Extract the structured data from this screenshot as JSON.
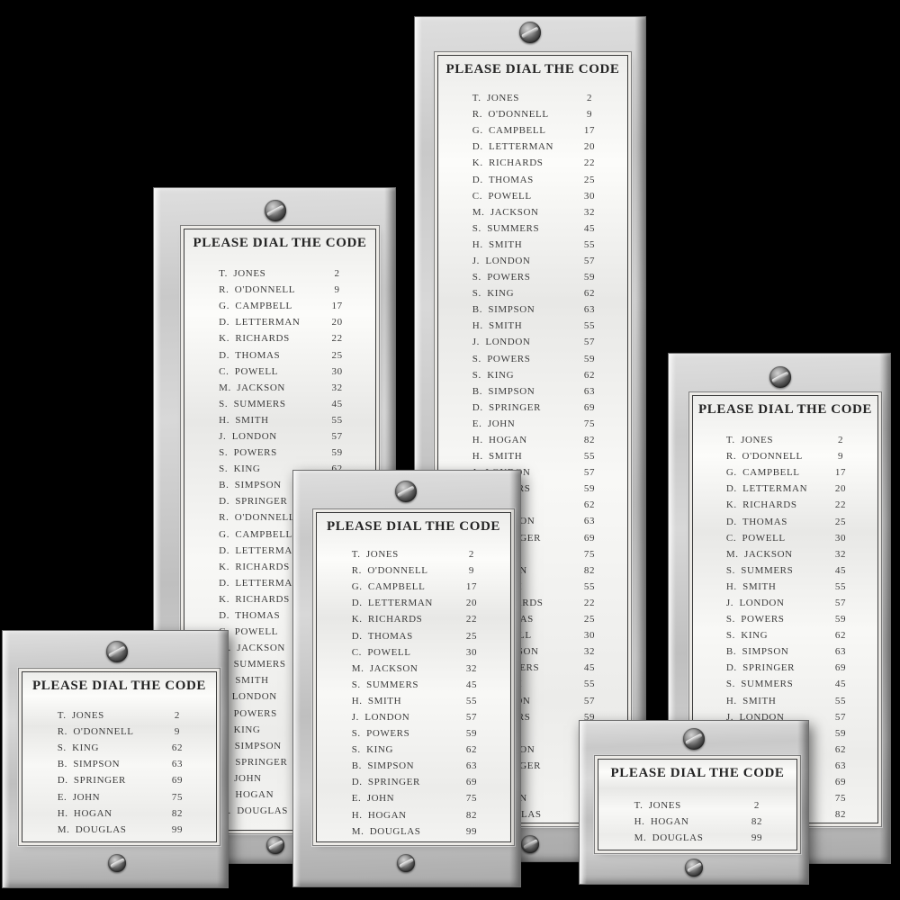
{
  "colors": {
    "background": "#000000",
    "frame_metal": "#c6c6c6",
    "paper": "#f4f4f2",
    "text": "#3c3c3c",
    "printed_border": "#3a3a3a"
  },
  "icons": {
    "screw": "slotted-screw-icon"
  },
  "panels": [
    {
      "id": "tall",
      "header": "PLEASE DIAL THE CODE",
      "entries": [
        {
          "name": "T. JONES",
          "code": "2"
        },
        {
          "name": "R. O'DONNELL",
          "code": "9"
        },
        {
          "name": "G. CAMPBELL",
          "code": "17"
        },
        {
          "name": "D. LETTERMAN",
          "code": "20"
        },
        {
          "name": "K. RICHARDS",
          "code": "22"
        },
        {
          "name": "D. THOMAS",
          "code": "25"
        },
        {
          "name": "C. POWELL",
          "code": "30"
        },
        {
          "name": "M. JACKSON",
          "code": "32"
        },
        {
          "name": "S. SUMMERS",
          "code": "45"
        },
        {
          "name": "H. SMITH",
          "code": "55"
        },
        {
          "name": "J. LONDON",
          "code": "57"
        },
        {
          "name": "S. POWERS",
          "code": "59"
        },
        {
          "name": "S. KING",
          "code": "62"
        },
        {
          "name": "B. SIMPSON",
          "code": "63"
        },
        {
          "name": "H. SMITH",
          "code": "55"
        },
        {
          "name": "J. LONDON",
          "code": "57"
        },
        {
          "name": "S. POWERS",
          "code": "59"
        },
        {
          "name": "S. KING",
          "code": "62"
        },
        {
          "name": "B. SIMPSON",
          "code": "63"
        },
        {
          "name": "D. SPRINGER",
          "code": "69"
        },
        {
          "name": "E. JOHN",
          "code": "75"
        },
        {
          "name": "H. HOGAN",
          "code": "82"
        },
        {
          "name": "H. SMITH",
          "code": "55"
        },
        {
          "name": "J. LONDON",
          "code": "57"
        },
        {
          "name": "S. POWERS",
          "code": "59"
        },
        {
          "name": "S. KING",
          "code": "62"
        },
        {
          "name": "B. SIMPSON",
          "code": "63"
        },
        {
          "name": "D. SPRINGER",
          "code": "69"
        },
        {
          "name": "E. JOHN",
          "code": "75"
        },
        {
          "name": "H. HOGAN",
          "code": "82"
        },
        {
          "name": "H. SMITH",
          "code": "55"
        },
        {
          "name": "K. RICHARDS",
          "code": "22"
        },
        {
          "name": "D. THOMAS",
          "code": "25"
        },
        {
          "name": "C. POWELL",
          "code": "30"
        },
        {
          "name": "M. JACKSON",
          "code": "32"
        },
        {
          "name": "S. SUMMERS",
          "code": "45"
        },
        {
          "name": "H. SMITH",
          "code": "55"
        },
        {
          "name": "J. LONDON",
          "code": "57"
        },
        {
          "name": "S. POWERS",
          "code": "59"
        },
        {
          "name": "S. KING",
          "code": "62"
        },
        {
          "name": "B. SIMPSON",
          "code": "63"
        },
        {
          "name": "D. SPRINGER",
          "code": "69"
        },
        {
          "name": "E. JOHN",
          "code": "75"
        },
        {
          "name": "H. HOGAN",
          "code": "82"
        },
        {
          "name": "M. DOUGLAS",
          "code": "99"
        }
      ]
    },
    {
      "id": "left",
      "header": "PLEASE DIAL THE CODE",
      "entries": [
        {
          "name": "T. JONES",
          "code": "2"
        },
        {
          "name": "R. O'DONNELL",
          "code": "9"
        },
        {
          "name": "G. CAMPBELL",
          "code": "17"
        },
        {
          "name": "D. LETTERMAN",
          "code": "20"
        },
        {
          "name": "K. RICHARDS",
          "code": "22"
        },
        {
          "name": "D. THOMAS",
          "code": "25"
        },
        {
          "name": "C. POWELL",
          "code": "30"
        },
        {
          "name": "M. JACKSON",
          "code": "32"
        },
        {
          "name": "S. SUMMERS",
          "code": "45"
        },
        {
          "name": "H. SMITH",
          "code": "55"
        },
        {
          "name": "J. LONDON",
          "code": "57"
        },
        {
          "name": "S. POWERS",
          "code": "59"
        },
        {
          "name": "S. KING",
          "code": "62"
        },
        {
          "name": "B. SIMPSON",
          "code": "63"
        },
        {
          "name": "D. SPRINGER",
          "code": "69"
        },
        {
          "name": "R. O'DONNELL",
          "code": "9"
        },
        {
          "name": "G. CAMPBELL",
          "code": "17"
        },
        {
          "name": "D. LETTERMAN",
          "code": "20"
        },
        {
          "name": "K. RICHARDS",
          "code": "22"
        },
        {
          "name": "D. LETTERMAN",
          "code": "20"
        },
        {
          "name": "K. RICHARDS",
          "code": "22"
        },
        {
          "name": "D. THOMAS",
          "code": "25"
        },
        {
          "name": "C. POWELL",
          "code": "30"
        },
        {
          "name": "M. JACKSON",
          "code": "32"
        },
        {
          "name": "S. SUMMERS",
          "code": "45"
        },
        {
          "name": "H. SMITH",
          "code": "55"
        },
        {
          "name": "J. LONDON",
          "code": "57"
        },
        {
          "name": "S. POWERS",
          "code": "59"
        },
        {
          "name": "S. KING",
          "code": "62"
        },
        {
          "name": "B. SIMPSON",
          "code": "63"
        },
        {
          "name": "D. SPRINGER",
          "code": "69"
        },
        {
          "name": "E. JOHN",
          "code": "75"
        },
        {
          "name": "H. HOGAN",
          "code": "82"
        },
        {
          "name": "M. DOUGLAS",
          "code": "99"
        }
      ]
    },
    {
      "id": "center",
      "header": "PLEASE DIAL THE CODE",
      "entries": [
        {
          "name": "T. JONES",
          "code": "2"
        },
        {
          "name": "R. O'DONNELL",
          "code": "9"
        },
        {
          "name": "G. CAMPBELL",
          "code": "17"
        },
        {
          "name": "D. LETTERMAN",
          "code": "20"
        },
        {
          "name": "K. RICHARDS",
          "code": "22"
        },
        {
          "name": "D. THOMAS",
          "code": "25"
        },
        {
          "name": "C. POWELL",
          "code": "30"
        },
        {
          "name": "M. JACKSON",
          "code": "32"
        },
        {
          "name": "S. SUMMERS",
          "code": "45"
        },
        {
          "name": "H. SMITH",
          "code": "55"
        },
        {
          "name": "J. LONDON",
          "code": "57"
        },
        {
          "name": "S. POWERS",
          "code": "59"
        },
        {
          "name": "S. KING",
          "code": "62"
        },
        {
          "name": "B. SIMPSON",
          "code": "63"
        },
        {
          "name": "D. SPRINGER",
          "code": "69"
        },
        {
          "name": "E. JOHN",
          "code": "75"
        },
        {
          "name": "H. HOGAN",
          "code": "82"
        },
        {
          "name": "M. DOUGLAS",
          "code": "99"
        }
      ]
    },
    {
      "id": "right",
      "header": "PLEASE DIAL THE CODE",
      "entries": [
        {
          "name": "T. JONES",
          "code": "2"
        },
        {
          "name": "R. O'DONNELL",
          "code": "9"
        },
        {
          "name": "G. CAMPBELL",
          "code": "17"
        },
        {
          "name": "D. LETTERMAN",
          "code": "20"
        },
        {
          "name": "K. RICHARDS",
          "code": "22"
        },
        {
          "name": "D. THOMAS",
          "code": "25"
        },
        {
          "name": "C. POWELL",
          "code": "30"
        },
        {
          "name": "M. JACKSON",
          "code": "32"
        },
        {
          "name": "S. SUMMERS",
          "code": "45"
        },
        {
          "name": "H. SMITH",
          "code": "55"
        },
        {
          "name": "J. LONDON",
          "code": "57"
        },
        {
          "name": "S. POWERS",
          "code": "59"
        },
        {
          "name": "S. KING",
          "code": "62"
        },
        {
          "name": "B. SIMPSON",
          "code": "63"
        },
        {
          "name": "D. SPRINGER",
          "code": "69"
        },
        {
          "name": "S. SUMMERS",
          "code": "45"
        },
        {
          "name": "H. SMITH",
          "code": "55"
        },
        {
          "name": "J. LONDON",
          "code": "57"
        },
        {
          "name": "S. POWERS",
          "code": "59"
        },
        {
          "name": "S. KING",
          "code": "62"
        },
        {
          "name": "B. SIMPSON",
          "code": "63"
        },
        {
          "name": "D. SPRINGER",
          "code": "69"
        },
        {
          "name": "E. JOHN",
          "code": "75"
        },
        {
          "name": "H. HOGAN",
          "code": "82"
        }
      ]
    },
    {
      "id": "bottom-left",
      "header": "PLEASE DIAL THE CODE",
      "entries": [
        {
          "name": "T. JONES",
          "code": "2"
        },
        {
          "name": "R. O'DONNELL",
          "code": "9"
        },
        {
          "name": "S. KING",
          "code": "62"
        },
        {
          "name": "B. SIMPSON",
          "code": "63"
        },
        {
          "name": "D. SPRINGER",
          "code": "69"
        },
        {
          "name": "E. JOHN",
          "code": "75"
        },
        {
          "name": "H. HOGAN",
          "code": "82"
        },
        {
          "name": "M. DOUGLAS",
          "code": "99"
        }
      ]
    },
    {
      "id": "bottom-right",
      "header": "PLEASE DIAL THE CODE",
      "entries": [
        {
          "name": "T. JONES",
          "code": "2"
        },
        {
          "name": "H. HOGAN",
          "code": "82"
        },
        {
          "name": "M. DOUGLAS",
          "code": "99"
        }
      ]
    }
  ]
}
